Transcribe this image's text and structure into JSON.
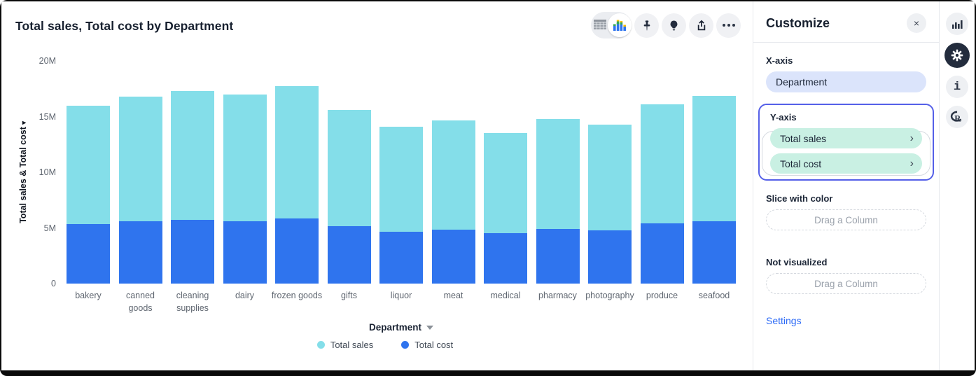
{
  "chart": {
    "title": "Total sales, Total cost by Department",
    "y_axis_label": "Total sales & Total cost",
    "x_axis_title": "Department"
  },
  "chart_data": {
    "type": "bar",
    "stacked": true,
    "title": "Total sales, Total cost by Department",
    "xlabel": "Department",
    "ylabel": "Total sales & Total cost",
    "categories": [
      "bakery",
      "canned goods",
      "cleaning supplies",
      "dairy",
      "frozen goods",
      "gifts",
      "liquor",
      "meat",
      "medical",
      "pharmacy",
      "photography",
      "produce",
      "seafood"
    ],
    "series": [
      {
        "name": "Total sales",
        "color": "#84dee9",
        "values_millions": [
          10.65,
          11.2,
          11.55,
          11.4,
          11.9,
          10.45,
          9.45,
          9.8,
          8.95,
          9.9,
          9.5,
          10.7,
          11.25
        ]
      },
      {
        "name": "Total cost",
        "color": "#2f74ee",
        "values_millions": [
          5.35,
          5.6,
          5.75,
          5.6,
          5.85,
          5.15,
          4.65,
          4.85,
          4.55,
          4.9,
          4.8,
          5.4,
          5.6
        ]
      }
    ],
    "stack_order_bottom_to_top": [
      "Total cost",
      "Total sales"
    ],
    "ylim_millions": [
      0,
      20
    ],
    "y_ticks_millions": [
      0,
      5,
      10,
      15,
      20
    ],
    "y_tick_labels": [
      "0",
      "5M",
      "10M",
      "15M",
      "20M"
    ],
    "grid": false,
    "legend_position": "bottom"
  },
  "toolbar": {
    "icons": [
      "table-view-icon",
      "chart-view-icon",
      "pin-icon",
      "lightbulb-icon",
      "share-icon",
      "more-options-icon"
    ]
  },
  "customize": {
    "title": "Customize",
    "close_glyph": "×",
    "x_axis": {
      "label": "X-axis",
      "pill": "Department"
    },
    "y_axis": {
      "label": "Y-axis",
      "pills": [
        "Total sales",
        "Total cost"
      ],
      "chevron": "›"
    },
    "slice_with_color": {
      "label": "Slice with color",
      "placeholder": "Drag a Column"
    },
    "not_visualized": {
      "label": "Not visualized",
      "placeholder": "Drag a Column"
    },
    "settings_link": "Settings"
  },
  "right_rail": {
    "icons": [
      "bar-chart-icon",
      "gear-icon",
      "info-icon",
      "r-logo-icon"
    ],
    "active": "gear-icon",
    "info_glyph": "i"
  },
  "colors": {
    "total_sales": "#84dee9",
    "total_cost": "#2f74ee",
    "x_pill_bg": "#dbe4fb",
    "y_pill_bg": "#c9f0e3",
    "y_group_border": "#5560e8",
    "settings_link": "#2e6bf6",
    "title_text": "#17202f",
    "muted_text": "#5f6670"
  }
}
